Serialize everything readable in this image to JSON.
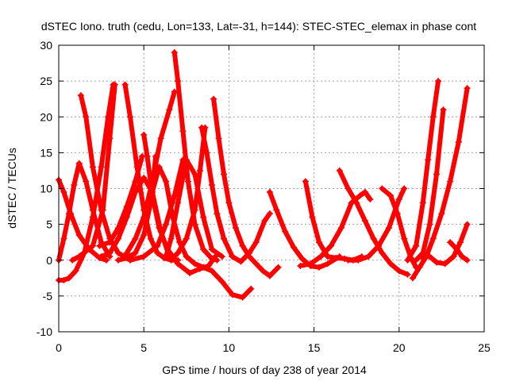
{
  "chart_data": {
    "type": "line",
    "title": "dSTEC Iono. truth (cedu, Lon=133, Lat=-31, h=144): STEC-STEC_elemax in phase cont",
    "xlabel": "GPS time / hours of day 238 of year 2014",
    "ylabel": "dSTEC  / TECUs",
    "xlim": [
      0,
      25
    ],
    "ylim": [
      -10,
      30
    ],
    "xticks": [
      "0",
      "5",
      "10",
      "15",
      "20",
      "25"
    ],
    "yticks": [
      "-10",
      "-5",
      "0",
      "5",
      "10",
      "15",
      "20",
      "25",
      "30"
    ],
    "grid": true,
    "marker": "+",
    "color": "#ff0000",
    "series": [
      {
        "x": [
          0.0,
          0.3,
          0.7,
          1.2,
          1.8,
          2.4,
          2.8
        ],
        "y": [
          11.2,
          9.5,
          6.5,
          3.5,
          1.5,
          0.3,
          0.0
        ]
      },
      {
        "x": [
          0.0,
          0.3,
          0.6,
          1.0,
          1.5,
          2.0,
          2.5,
          2.9,
          3.2
        ],
        "y": [
          -2.8,
          -2.8,
          -2.5,
          -1.5,
          1.0,
          6.0,
          13.0,
          20.0,
          24.5
        ]
      },
      {
        "x": [
          0.0,
          0.3,
          0.6,
          0.9,
          1.2
        ],
        "y": [
          0.0,
          3.0,
          6.5,
          10.5,
          13.5
        ]
      },
      {
        "x": [
          1.2,
          1.6,
          2.0,
          2.5,
          3.0
        ],
        "y": [
          13.5,
          11.0,
          7.0,
          2.5,
          0.5
        ]
      },
      {
        "x": [
          1.3,
          1.6,
          2.0,
          2.5,
          3.0,
          3.5,
          4.2,
          5.0,
          5.8,
          6.3,
          6.8,
          7.3
        ],
        "y": [
          23.0,
          20.0,
          13.0,
          7.0,
          3.0,
          1.0,
          0.0,
          0.5,
          2.0,
          5.0,
          9.0,
          14.0
        ]
      },
      {
        "x": [
          2.4,
          3.0,
          3.5,
          4.0,
          4.5,
          4.9
        ],
        "y": [
          2.0,
          2.5,
          4.5,
          7.5,
          11.0,
          14.5
        ]
      },
      {
        "x": [
          0.8,
          1.2,
          2.0,
          2.6,
          3.0,
          3.3
        ],
        "y": [
          0.0,
          0.5,
          2.0,
          7.0,
          17.0,
          24.5
        ]
      },
      {
        "x": [
          3.9,
          4.2,
          4.6,
          5.0,
          5.4,
          5.8,
          6.2,
          6.6,
          7.0
        ],
        "y": [
          24.5,
          20.0,
          13.0,
          7.0,
          3.0,
          1.0,
          0.3,
          0.0,
          0.0
        ]
      },
      {
        "x": [
          2.5,
          3.0,
          3.5,
          4.0,
          4.5,
          5.0,
          5.5,
          6.0,
          6.5
        ],
        "y": [
          0.5,
          1.0,
          3.0,
          6.0,
          9.5,
          11.5,
          9.5,
          4.0,
          0.5
        ]
      },
      {
        "x": [
          3.5,
          4.0,
          4.5,
          5.0,
          5.4,
          5.7
        ],
        "y": [
          0.0,
          0.3,
          1.0,
          3.5,
          8.0,
          14.5
        ]
      },
      {
        "x": [
          5.0,
          5.2,
          5.5,
          5.9,
          6.4,
          7.0,
          7.7,
          8.3,
          8.8,
          9.2
        ],
        "y": [
          17.5,
          14.5,
          9.0,
          4.5,
          1.5,
          -0.5,
          -1.8,
          -1.2,
          -0.8,
          0.5
        ]
      },
      {
        "x": [
          5.5,
          5.9,
          6.3,
          6.7,
          7.1,
          7.5,
          8.0,
          8.5,
          9.0,
          9.6,
          10.2,
          10.8,
          11.3
        ],
        "y": [
          9.5,
          13.0,
          11.0,
          6.0,
          2.5,
          0.5,
          -0.5,
          -1.0,
          -1.5,
          -3.0,
          -4.8,
          -5.2,
          -4.0
        ]
      },
      {
        "x": [
          4.0,
          4.5,
          5.0,
          5.5,
          6.0,
          6.5,
          6.8
        ],
        "y": [
          1.0,
          3.0,
          6.0,
          11.0,
          17.0,
          21.0,
          23.5
        ]
      },
      {
        "x": [
          6.8,
          7.0,
          7.3,
          7.6,
          8.0,
          8.5,
          9.0,
          9.3
        ],
        "y": [
          29.0,
          25.0,
          18.0,
          11.0,
          5.0,
          1.5,
          0.2,
          0.0
        ]
      },
      {
        "x": [
          6.3,
          6.6,
          7.0,
          7.5,
          8.0,
          8.5,
          9.0,
          9.6
        ],
        "y": [
          0.5,
          3.0,
          8.0,
          14.0,
          12.0,
          6.0,
          1.5,
          0.5
        ]
      },
      {
        "x": [
          6.7,
          7.0,
          7.5,
          8.0,
          8.3,
          8.6
        ],
        "y": [
          0.3,
          1.0,
          3.0,
          7.0,
          12.5,
          18.5
        ]
      },
      {
        "x": [
          8.4,
          8.7,
          9.0,
          9.3,
          9.7,
          10.2,
          10.7,
          11.2,
          11.6,
          12.1,
          12.4
        ],
        "y": [
          18.5,
          15.0,
          10.5,
          6.5,
          3.0,
          0.5,
          -0.2,
          1.0,
          2.5,
          5.5,
          6.5
        ]
      },
      {
        "x": [
          9.1,
          9.4,
          9.7,
          10.0,
          10.4,
          10.8,
          11.2,
          11.6,
          12.0,
          12.4,
          12.9
        ],
        "y": [
          22.5,
          17.0,
          12.0,
          8.0,
          4.5,
          2.0,
          0.5,
          -0.5,
          -1.5,
          -2.2,
          -1.0
        ]
      },
      {
        "x": [
          12.4,
          12.8,
          13.3,
          13.8,
          14.3,
          14.8,
          15.3,
          15.8,
          16.5
        ],
        "y": [
          9.5,
          7.0,
          4.0,
          1.8,
          0.2,
          -0.8,
          -1.0,
          -0.5,
          0.5
        ]
      },
      {
        "x": [
          14.5,
          14.9,
          15.3,
          15.8,
          16.3,
          16.8,
          17.3,
          17.8
        ],
        "y": [
          11.0,
          6.0,
          2.5,
          0.5,
          0.3,
          0.2,
          0.0,
          0.5
        ]
      },
      {
        "x": [
          14.2,
          14.8,
          15.4,
          16.0,
          16.6,
          17.2,
          17.7,
          18.0,
          18.3
        ],
        "y": [
          -0.8,
          -0.5,
          0.5,
          2.0,
          4.5,
          8.0,
          9.0,
          9.5,
          8.5
        ]
      },
      {
        "x": [
          16.5,
          17.0,
          17.5,
          18.0,
          18.5,
          19.0,
          19.5,
          20.0,
          20.5
        ],
        "y": [
          12.5,
          10.0,
          8.0,
          5.5,
          3.0,
          1.0,
          -0.5,
          -1.5,
          -2.0
        ]
      },
      {
        "x": [
          17.0,
          17.6,
          18.2,
          18.8,
          19.4,
          20.0,
          20.3
        ],
        "y": [
          0.0,
          0.0,
          0.5,
          2.0,
          4.5,
          8.5,
          10.0
        ]
      },
      {
        "x": [
          19.0,
          19.5,
          19.9,
          20.3,
          20.7,
          21.0
        ],
        "y": [
          10.0,
          9.0,
          6.5,
          3.0,
          0.3,
          -1.0
        ]
      },
      {
        "x": [
          20.8,
          21.2,
          21.6,
          22.0,
          22.5,
          23.0,
          23.5,
          24.0
        ],
        "y": [
          -2.5,
          -1.0,
          0.5,
          3.0,
          6.5,
          11.0,
          16.5,
          24.0
        ]
      },
      {
        "x": [
          20.5,
          21.0,
          21.4,
          21.7,
          22.0,
          22.3
        ],
        "y": [
          0.0,
          2.0,
          8.0,
          14.0,
          20.0,
          25.0
        ]
      },
      {
        "x": [
          21.0,
          21.4,
          21.8,
          22.2,
          22.6
        ],
        "y": [
          0.0,
          1.0,
          5.0,
          12.0,
          21.0
        ]
      },
      {
        "x": [
          21.3,
          21.8,
          22.2,
          22.7,
          23.2,
          23.6,
          24.0
        ],
        "y": [
          0.5,
          0.5,
          -0.3,
          -0.5,
          0.5,
          2.5,
          5.0
        ]
      },
      {
        "x": [
          23.0,
          23.4,
          23.7,
          24.0
        ],
        "y": [
          2.5,
          1.5,
          0.5,
          0.0
        ]
      }
    ]
  }
}
